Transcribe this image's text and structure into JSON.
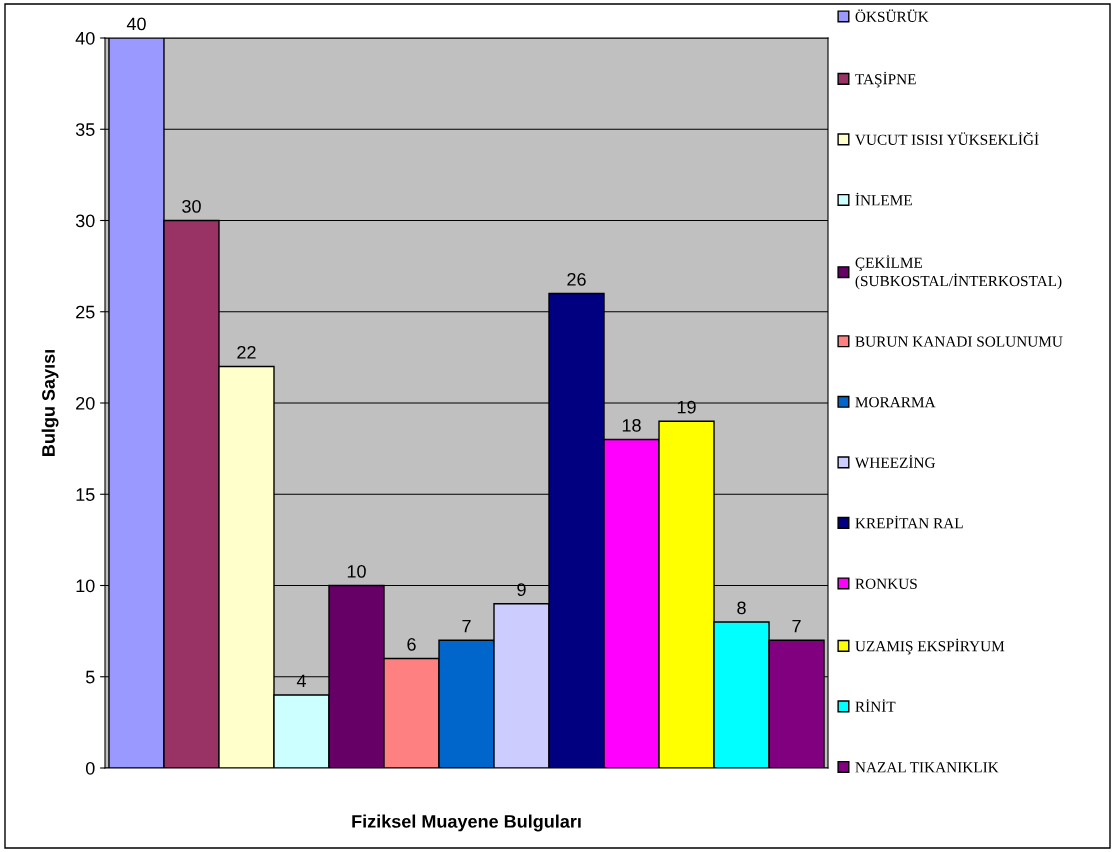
{
  "chart_data": {
    "type": "bar",
    "xlabel": "Fiziksel Muayene Bulguları",
    "ylabel": "Bulgu Sayısı",
    "categories": [
      null
    ],
    "series": [
      {
        "name": "ÖKSÜRÜK",
        "color": "#9999ff",
        "values": [
          40
        ]
      },
      {
        "name": "TAŞİPNE",
        "color": "#993366",
        "values": [
          30
        ]
      },
      {
        "name": "VUCUT ISISI YÜKSEKLİĞİ",
        "color": "#ffffcc",
        "values": [
          22
        ]
      },
      {
        "name": "İNLEME",
        "color": "#ccffff",
        "values": [
          4
        ]
      },
      {
        "name": "ÇEKİLME\n(SUBKOSTAL/İNTERKOSTAL)",
        "color": "#660066",
        "values": [
          10
        ]
      },
      {
        "name": "BURUN KANADI SOLUNUMU",
        "color": "#ff8080",
        "values": [
          6
        ]
      },
      {
        "name": "MORARMA",
        "color": "#0066cc",
        "values": [
          7
        ]
      },
      {
        "name": "WHEEZİNG",
        "color": "#ccccff",
        "values": [
          9
        ]
      },
      {
        "name": "KREPİTAN RAL",
        "color": "#000080",
        "values": [
          26
        ]
      },
      {
        "name": "RONKUS",
        "color": "#ff00ff",
        "values": [
          18
        ]
      },
      {
        "name": "UZAMIŞ EKSPİRYUM",
        "color": "#ffff00",
        "values": [
          19
        ]
      },
      {
        "name": "RİNİT",
        "color": "#00ffff",
        "values": [
          8
        ]
      },
      {
        "name": "NAZAL TIKANIKLIK",
        "color": "#800080",
        "values": [
          7
        ]
      }
    ],
    "ylim": [
      0,
      40
    ],
    "yticks": [
      0,
      5,
      10,
      15,
      20,
      25,
      30,
      35,
      40
    ],
    "grid": "y",
    "legend": "right",
    "data_labels": true
  }
}
